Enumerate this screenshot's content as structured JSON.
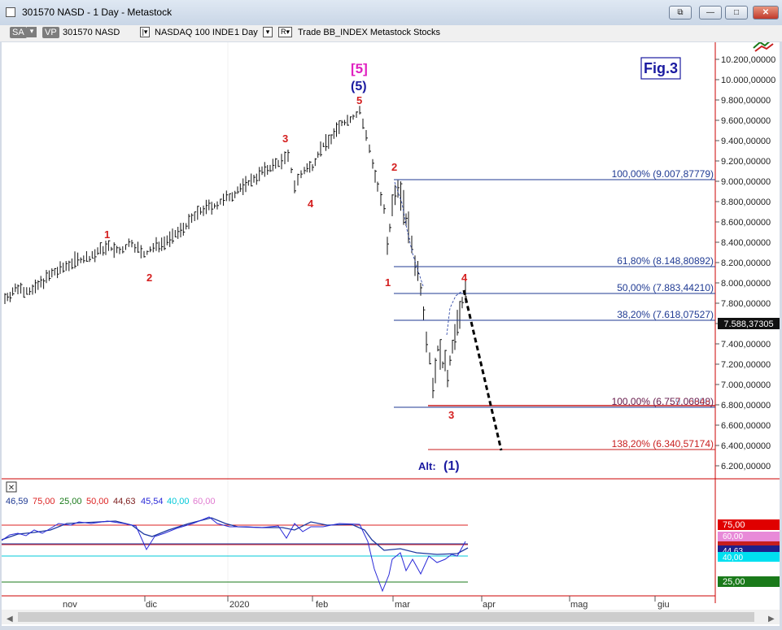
{
  "window": {
    "title": "301570 NASD - 1 Day - Metastock"
  },
  "toolbar": {
    "sa_label": "SA",
    "vp_label": "VP",
    "symbol": "301570 NASD",
    "security_name": "NASDAQ 100 INDE",
    "period": "1 Day",
    "r_label": "R",
    "template_text": "Trade  BB_INDEX  Metastock  Stocks"
  },
  "chart_labels": {
    "fig_label": "Fig.3",
    "major_wave": "[5]",
    "intermediate_wave": "(5)",
    "alt_label": "Alt:",
    "alt_wave": "(1)",
    "wave_marks": [
      "1",
      "2",
      "3",
      "4",
      "5",
      "1",
      "2",
      "3",
      "4"
    ]
  },
  "price_axis": {
    "ticks": [
      "10.200,00000",
      "10.000,00000",
      "9.800,00000",
      "9.600,00000",
      "9.400,00000",
      "9.200,00000",
      "9.000,00000",
      "8.800,00000",
      "8.600,00000",
      "8.400,00000",
      "8.200,00000",
      "8.000,00000",
      "7.800,00000",
      "7.600,00000",
      "7.400,00000",
      "7.200,00000",
      "7.000,00000",
      "6.800,00000",
      "6.600,00000",
      "6.400,00000",
      "6.200,00000"
    ],
    "current_price": "7.588,37305"
  },
  "fib_levels": [
    {
      "label": "100,00% (9.007,87779)",
      "color": "#1f3a93"
    },
    {
      "label": "61,80% (8.148,80892)",
      "color": "#1f3a93"
    },
    {
      "label": "50,00% (7.883,44210)",
      "color": "#1f3a93"
    },
    {
      "label": "38,20% (7.618,07527)",
      "color": "#1f3a93"
    },
    {
      "label": "100,00% (6.757,06848)",
      "color": "#c81e1e"
    },
    {
      "label": "100,00% (6.759,00000)",
      "color": "#1f3a93"
    },
    {
      "label": "138,20% (6.340,57174)",
      "color": "#c81e1e"
    }
  ],
  "indicator": {
    "values": [
      {
        "text": "46,59",
        "color": "#1f3a93"
      },
      {
        "text": "75,00",
        "color": "#d22"
      },
      {
        "text": "25,00",
        "color": "#1a7a1a"
      },
      {
        "text": "50,00",
        "color": "#d22"
      },
      {
        "text": "44,63",
        "color": "#7a1a1a"
      },
      {
        "text": "45,54",
        "color": "#2a2ad8"
      },
      {
        "text": "40,00",
        "color": "#00c8d8"
      },
      {
        "text": "60,00",
        "color": "#e07ad0"
      }
    ],
    "axis_tags": [
      "75,00",
      "60,00",
      "44,63",
      "40,00",
      "25,00"
    ]
  },
  "time_axis": {
    "labels": [
      "nov",
      "dic",
      "2020",
      "feb",
      "mar",
      "apr",
      "mag",
      "giu"
    ]
  },
  "colors": {
    "wave_red": "#d41e1e",
    "wave_blue": "#1a1aa0",
    "magenta": "#e020c0",
    "fib_blue": "#1f3a93",
    "fib_red": "#c81e1e"
  }
}
